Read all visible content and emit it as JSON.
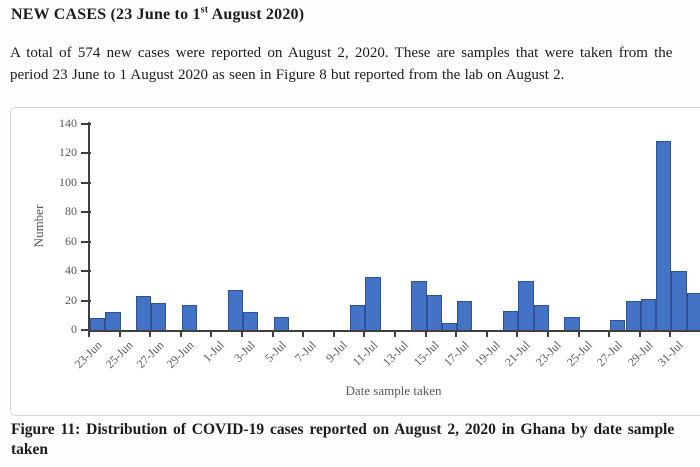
{
  "document": {
    "heading": {
      "pre": "NEW CASES (23 June to 1",
      "sup": "st",
      "post": " August 2020)"
    },
    "paragraph": {
      "line1": "A total of 574 new cases were reported on August 2, 2020. These are samples that were taken from the",
      "line2": "period 23 June to 1 August 2020 as seen in Figure 8 but reported from the lab on August 2."
    },
    "caption": {
      "line1": "Figure 11: Distribution of COVID-19 cases reported on August 2, 2020 in Ghana by date sample",
      "line2": "taken"
    }
  },
  "chart_data": {
    "type": "bar",
    "title": "",
    "xlabel": "Date sample taken",
    "ylabel": "Number",
    "ylim": [
      0,
      140
    ],
    "yticks": [
      0,
      20,
      40,
      60,
      80,
      100,
      120,
      140
    ],
    "grid": false,
    "legend": "none",
    "categories": [
      "23-Jun",
      "24-Jun",
      "25-Jun",
      "26-Jun",
      "27-Jun",
      "28-Jun",
      "29-Jun",
      "30-Jun",
      "1-Jul",
      "2-Jul",
      "3-Jul",
      "4-Jul",
      "5-Jul",
      "6-Jul",
      "7-Jul",
      "8-Jul",
      "9-Jul",
      "10-Jul",
      "11-Jul",
      "12-Jul",
      "13-Jul",
      "14-Jul",
      "15-Jul",
      "16-Jul",
      "17-Jul",
      "18-Jul",
      "19-Jul",
      "20-Jul",
      "21-Jul",
      "22-Jul",
      "23-Jul",
      "24-Jul",
      "25-Jul",
      "26-Jul",
      "27-Jul",
      "28-Jul",
      "29-Jul",
      "30-Jul",
      "31-Jul",
      "1-Aug"
    ],
    "values": [
      8,
      12,
      0,
      23,
      18,
      0,
      17,
      0,
      0,
      27,
      12,
      0,
      9,
      0,
      0,
      0,
      0,
      17,
      36,
      0,
      0,
      33,
      24,
      5,
      20,
      0,
      0,
      13,
      33,
      17,
      0,
      9,
      0,
      0,
      7,
      20,
      21,
      128,
      40,
      25
    ],
    "xtick_labels": [
      "23-Jun",
      "25-Jun",
      "27-Jun",
      "29-Jun",
      "1-Jul",
      "3-Jul",
      "5-Jul",
      "7-Jul",
      "9-Jul",
      "11-Jul",
      "13-Jul",
      "15-Jul",
      "17-Jul",
      "19-Jul",
      "21-Jul",
      "23-Jul",
      "25-Jul",
      "27-Jul",
      "29-Jul",
      "31-Jul"
    ],
    "bar_fill": "#4472c4",
    "bar_border": "#2e5395",
    "axis_color": "#3f3f3f",
    "label_color": "#595959"
  }
}
